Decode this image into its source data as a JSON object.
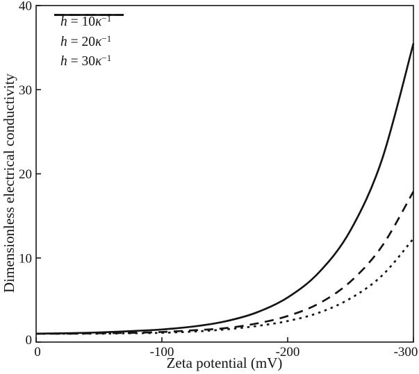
{
  "figure": {
    "background": "#ffffff",
    "line_color": "#141414"
  },
  "chart_data": {
    "type": "line",
    "title": "",
    "xlabel": "Zeta potential (mV)",
    "ylabel": "Dimensionless electrical conductivity",
    "xlim": [
      0,
      -300
    ],
    "ylim": [
      0,
      40
    ],
    "grid": false,
    "legend_position": "upper-left-inside",
    "xticks": [
      {
        "value": 0,
        "label": "0"
      },
      {
        "value": -100,
        "label": "-100"
      },
      {
        "value": -200,
        "label": "-200"
      },
      {
        "value": -300,
        "label": "-300"
      }
    ],
    "yticks": [
      {
        "value": 0,
        "label": "0"
      },
      {
        "value": 10,
        "label": "10"
      },
      {
        "value": 20,
        "label": "20"
      },
      {
        "value": 30,
        "label": "30"
      },
      {
        "value": 40,
        "label": "40"
      }
    ],
    "x": [
      0,
      -25,
      -50,
      -75,
      -100,
      -125,
      -150,
      -175,
      -200,
      -225,
      -250,
      -275,
      -300
    ],
    "series": [
      {
        "name": "h = 10κ⁻¹",
        "style": "solid",
        "values": [
          1.0,
          1.05,
          1.15,
          1.3,
          1.5,
          1.85,
          2.45,
          3.5,
          5.3,
          8.3,
          13.3,
          21.7,
          35.5
        ]
      },
      {
        "name": "h = 20κ⁻¹",
        "style": "dashed",
        "values": [
          1.0,
          1.0,
          1.05,
          1.1,
          1.2,
          1.4,
          1.65,
          2.2,
          3.1,
          4.6,
          7.2,
          11.4,
          17.9
        ]
      },
      {
        "name": "h = 30κ⁻¹",
        "style": "dotted",
        "values": [
          1.0,
          1.0,
          1.0,
          1.05,
          1.1,
          1.25,
          1.5,
          1.9,
          2.5,
          3.5,
          5.2,
          7.9,
          12.3
        ]
      }
    ]
  },
  "legend": {
    "items": [
      {
        "variable": "h",
        "relation": " = ",
        "value": "10",
        "symbol": "κ",
        "exponent": "−1",
        "line_style": "solid"
      },
      {
        "variable": "h",
        "relation": " = ",
        "value": "20",
        "symbol": "κ",
        "exponent": "−1",
        "line_style": "dashed"
      },
      {
        "variable": "h",
        "relation": " = ",
        "value": "30",
        "symbol": "κ",
        "exponent": "−1",
        "line_style": "dotted"
      }
    ]
  }
}
